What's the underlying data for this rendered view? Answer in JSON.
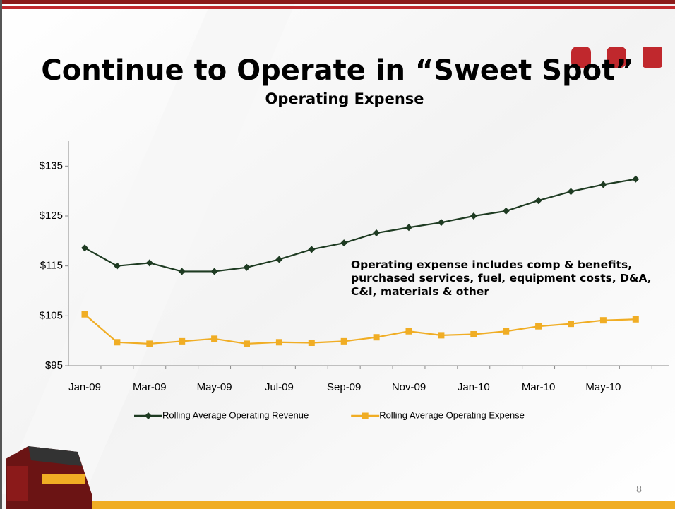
{
  "chart_data": {
    "type": "line",
    "title": "Continue to Operate in “Sweet Spot”",
    "subtitle": "Operating Expense",
    "annotation": "Operating expense includes comp & benefits, purchased services, fuel, equipment costs, D&A, C&I, materials & other",
    "page_number": "8",
    "categories": [
      "Jan-09",
      null,
      "Mar-09",
      null,
      "May-09",
      null,
      "Jul-09",
      null,
      "Sep-09",
      null,
      "Nov-09",
      null,
      "Jan-10",
      null,
      "Mar-10",
      null,
      "May-10",
      null
    ],
    "series": [
      {
        "name": "Rolling Average Operating Revenue",
        "color": "#1e3b22",
        "marker": "diamond",
        "values": [
          118.6,
          115.0,
          115.6,
          113.9,
          113.9,
          114.7,
          116.3,
          118.3,
          119.6,
          121.6,
          122.7,
          123.7,
          125.0,
          126.0,
          128.1,
          129.9,
          131.3,
          132.4
        ]
      },
      {
        "name": "Rolling Average Operating Expense",
        "color": "#f0ad24",
        "marker": "square",
        "values": [
          105.3,
          99.7,
          99.4,
          99.9,
          100.4,
          99.4,
          99.7,
          99.6,
          99.9,
          100.7,
          101.9,
          101.1,
          101.3,
          101.9,
          102.9,
          103.4,
          104.1,
          104.3
        ]
      }
    ],
    "ylim": [
      95,
      140
    ],
    "yticks": [
      {
        "value": 95,
        "label": "$95"
      },
      {
        "value": 105,
        "label": "$105"
      },
      {
        "value": 115,
        "label": "$115"
      },
      {
        "value": 125,
        "label": "$125"
      },
      {
        "value": 135,
        "label": "$135"
      }
    ]
  }
}
